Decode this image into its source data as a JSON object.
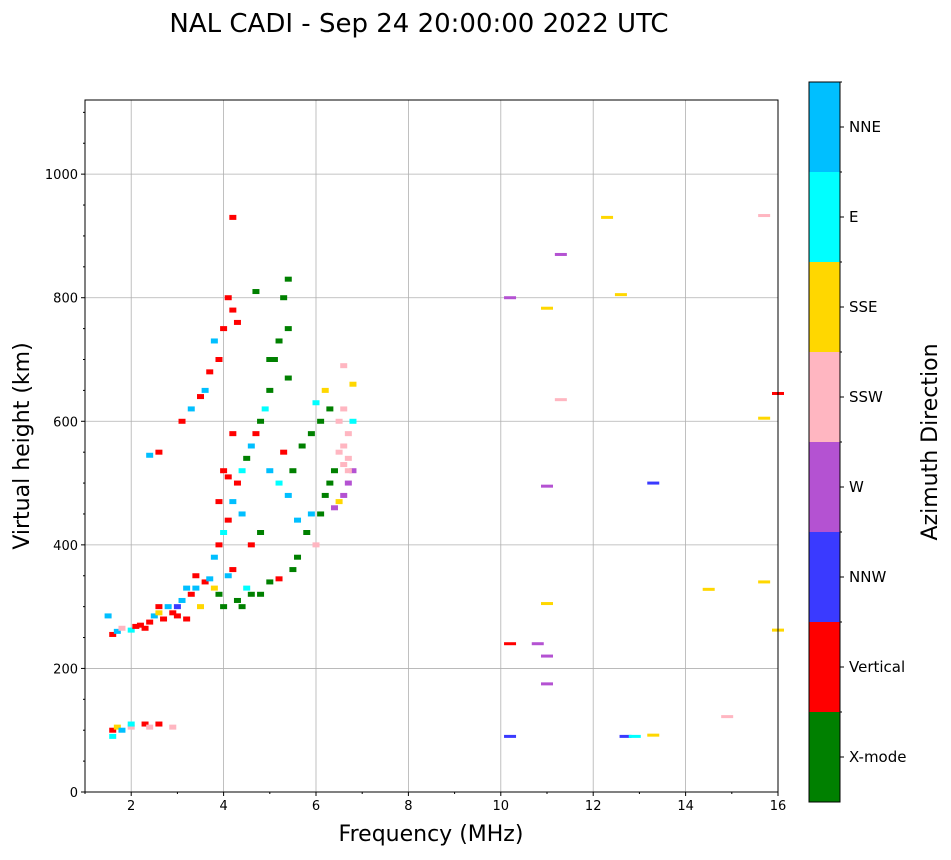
{
  "chart_data": {
    "type": "scatter",
    "title": "NAL CADI - Sep 24 20:00:00 2022 UTC",
    "xlabel": "Frequency (MHz)",
    "ylabel": "Virtual height (km)",
    "xlim": [
      1,
      16
    ],
    "ylim": [
      0,
      1120
    ],
    "xticks": [
      2,
      4,
      6,
      8,
      10,
      12,
      14,
      16
    ],
    "yticks": [
      0,
      200,
      400,
      600,
      800,
      1000
    ],
    "grid": true,
    "colorbar": {
      "label": "Azimuth Direction",
      "categories": [
        "X-mode",
        "Vertical",
        "NNW",
        "W",
        "SSW",
        "SSE",
        "E",
        "NNE"
      ],
      "colors": [
        "#008000",
        "#ff0000",
        "#3a3aff",
        "#b452d2",
        "#ffb6c1",
        "#ffd700",
        "#00ffff",
        "#00bfff"
      ]
    },
    "points": [
      [
        1.6,
        100,
        1
      ],
      [
        1.7,
        105,
        5
      ],
      [
        1.8,
        100,
        7
      ],
      [
        2.0,
        105,
        4
      ],
      [
        2.0,
        110,
        6
      ],
      [
        2.3,
        110,
        1
      ],
      [
        2.4,
        105,
        4
      ],
      [
        2.6,
        110,
        1
      ],
      [
        2.9,
        105,
        4
      ],
      [
        1.6,
        90,
        6
      ],
      [
        1.5,
        285,
        7
      ],
      [
        1.6,
        255,
        1
      ],
      [
        1.7,
        260,
        7
      ],
      [
        1.8,
        265,
        4
      ],
      [
        2.0,
        262,
        6
      ],
      [
        2.1,
        268,
        1
      ],
      [
        2.3,
        265,
        1
      ],
      [
        2.4,
        275,
        1
      ],
      [
        2.5,
        285,
        7
      ],
      [
        2.6,
        290,
        5
      ],
      [
        2.7,
        280,
        1
      ],
      [
        2.8,
        300,
        7
      ],
      [
        2.9,
        290,
        1
      ],
      [
        3.0,
        300,
        2
      ],
      [
        3.1,
        310,
        7
      ],
      [
        3.2,
        280,
        1
      ],
      [
        3.3,
        320,
        1
      ],
      [
        3.4,
        330,
        7
      ],
      [
        3.5,
        300,
        5
      ],
      [
        3.6,
        340,
        1
      ],
      [
        3.7,
        345,
        7
      ],
      [
        3.8,
        330,
        5
      ],
      [
        3.9,
        320,
        0
      ],
      [
        4.0,
        300,
        0
      ],
      [
        4.1,
        350,
        7
      ],
      [
        4.2,
        360,
        1
      ],
      [
        4.3,
        310,
        0
      ],
      [
        4.4,
        300,
        0
      ],
      [
        4.5,
        330,
        6
      ],
      [
        4.6,
        320,
        0
      ],
      [
        4.8,
        320,
        0
      ],
      [
        5.0,
        340,
        0
      ],
      [
        5.2,
        345,
        1
      ],
      [
        5.5,
        360,
        0
      ],
      [
        5.6,
        380,
        0
      ],
      [
        2.2,
        270,
        1
      ],
      [
        2.6,
        300,
        1
      ],
      [
        3.0,
        285,
        1
      ],
      [
        3.2,
        330,
        7
      ],
      [
        3.4,
        350,
        1
      ],
      [
        3.8,
        380,
        7
      ],
      [
        3.9,
        400,
        1
      ],
      [
        4.0,
        420,
        6
      ],
      [
        4.1,
        440,
        1
      ],
      [
        4.2,
        470,
        7
      ],
      [
        4.3,
        500,
        1
      ],
      [
        4.4,
        520,
        6
      ],
      [
        4.5,
        540,
        0
      ],
      [
        4.6,
        560,
        7
      ],
      [
        4.7,
        580,
        1
      ],
      [
        4.8,
        600,
        0
      ],
      [
        4.9,
        620,
        6
      ],
      [
        5.0,
        650,
        0
      ],
      [
        5.1,
        700,
        0
      ],
      [
        5.2,
        730,
        0
      ],
      [
        5.4,
        750,
        0
      ],
      [
        5.3,
        800,
        0
      ],
      [
        4.1,
        800,
        1
      ],
      [
        4.2,
        780,
        1
      ],
      [
        4.3,
        760,
        1
      ],
      [
        4.0,
        750,
        1
      ],
      [
        3.8,
        730,
        7
      ],
      [
        3.9,
        700,
        1
      ],
      [
        3.7,
        680,
        1
      ],
      [
        3.6,
        650,
        7
      ],
      [
        3.5,
        640,
        1
      ],
      [
        3.3,
        620,
        7
      ],
      [
        3.1,
        600,
        1
      ],
      [
        2.6,
        550,
        1
      ],
      [
        2.4,
        545,
        7
      ],
      [
        4.2,
        930,
        1
      ],
      [
        4.7,
        810,
        0
      ],
      [
        5.4,
        830,
        0
      ],
      [
        4.0,
        520,
        1
      ],
      [
        4.1,
        510,
        1
      ],
      [
        4.2,
        580,
        1
      ],
      [
        3.9,
        470,
        1
      ],
      [
        4.4,
        450,
        7
      ],
      [
        4.6,
        400,
        1
      ],
      [
        4.8,
        420,
        0
      ],
      [
        6.0,
        400,
        4
      ],
      [
        6.1,
        450,
        0
      ],
      [
        6.2,
        480,
        0
      ],
      [
        6.3,
        500,
        0
      ],
      [
        6.4,
        520,
        0
      ],
      [
        6.5,
        550,
        4
      ],
      [
        6.6,
        560,
        4
      ],
      [
        6.7,
        540,
        4
      ],
      [
        6.8,
        520,
        3
      ],
      [
        6.7,
        500,
        3
      ],
      [
        6.6,
        480,
        3
      ],
      [
        6.5,
        470,
        5
      ],
      [
        6.4,
        460,
        3
      ],
      [
        6.3,
        620,
        0
      ],
      [
        6.2,
        650,
        5
      ],
      [
        6.6,
        690,
        4
      ],
      [
        6.8,
        660,
        5
      ],
      [
        6.8,
        600,
        6
      ],
      [
        6.7,
        580,
        4
      ],
      [
        5.9,
        450,
        7
      ],
      [
        5.8,
        420,
        0
      ],
      [
        5.6,
        440,
        7
      ],
      [
        5.4,
        480,
        7
      ],
      [
        5.2,
        500,
        6
      ],
      [
        5.0,
        520,
        7
      ],
      [
        5.3,
        550,
        1
      ],
      [
        5.5,
        520,
        0
      ],
      [
        5.7,
        560,
        0
      ],
      [
        5.9,
        580,
        0
      ],
      [
        6.1,
        600,
        0
      ],
      [
        6.0,
        630,
        6
      ],
      [
        5.4,
        670,
        0
      ],
      [
        5.0,
        700,
        0
      ],
      [
        6.6,
        530,
        4
      ],
      [
        6.7,
        520,
        4
      ],
      [
        6.5,
        600,
        4
      ],
      [
        6.6,
        620,
        4
      ],
      [
        10.2,
        800,
        3
      ],
      [
        10.2,
        240,
        1
      ],
      [
        10.2,
        90,
        2
      ],
      [
        10.8,
        240,
        3
      ],
      [
        11.0,
        220,
        3
      ],
      [
        11.0,
        175,
        3
      ],
      [
        11.0,
        305,
        5
      ],
      [
        11.0,
        495,
        3
      ],
      [
        11.0,
        783,
        5
      ],
      [
        11.3,
        870,
        3
      ],
      [
        11.3,
        635,
        4
      ],
      [
        12.3,
        930,
        5
      ],
      [
        12.6,
        805,
        5
      ],
      [
        12.7,
        90,
        2
      ],
      [
        12.9,
        90,
        6
      ],
      [
        13.3,
        92,
        5
      ],
      [
        13.3,
        500,
        2
      ],
      [
        14.5,
        328,
        5
      ],
      [
        14.9,
        122,
        4
      ],
      [
        15.7,
        605,
        5
      ],
      [
        15.7,
        340,
        5
      ],
      [
        15.7,
        933,
        4
      ],
      [
        16.0,
        645,
        1
      ],
      [
        16.0,
        262,
        5
      ]
    ]
  }
}
